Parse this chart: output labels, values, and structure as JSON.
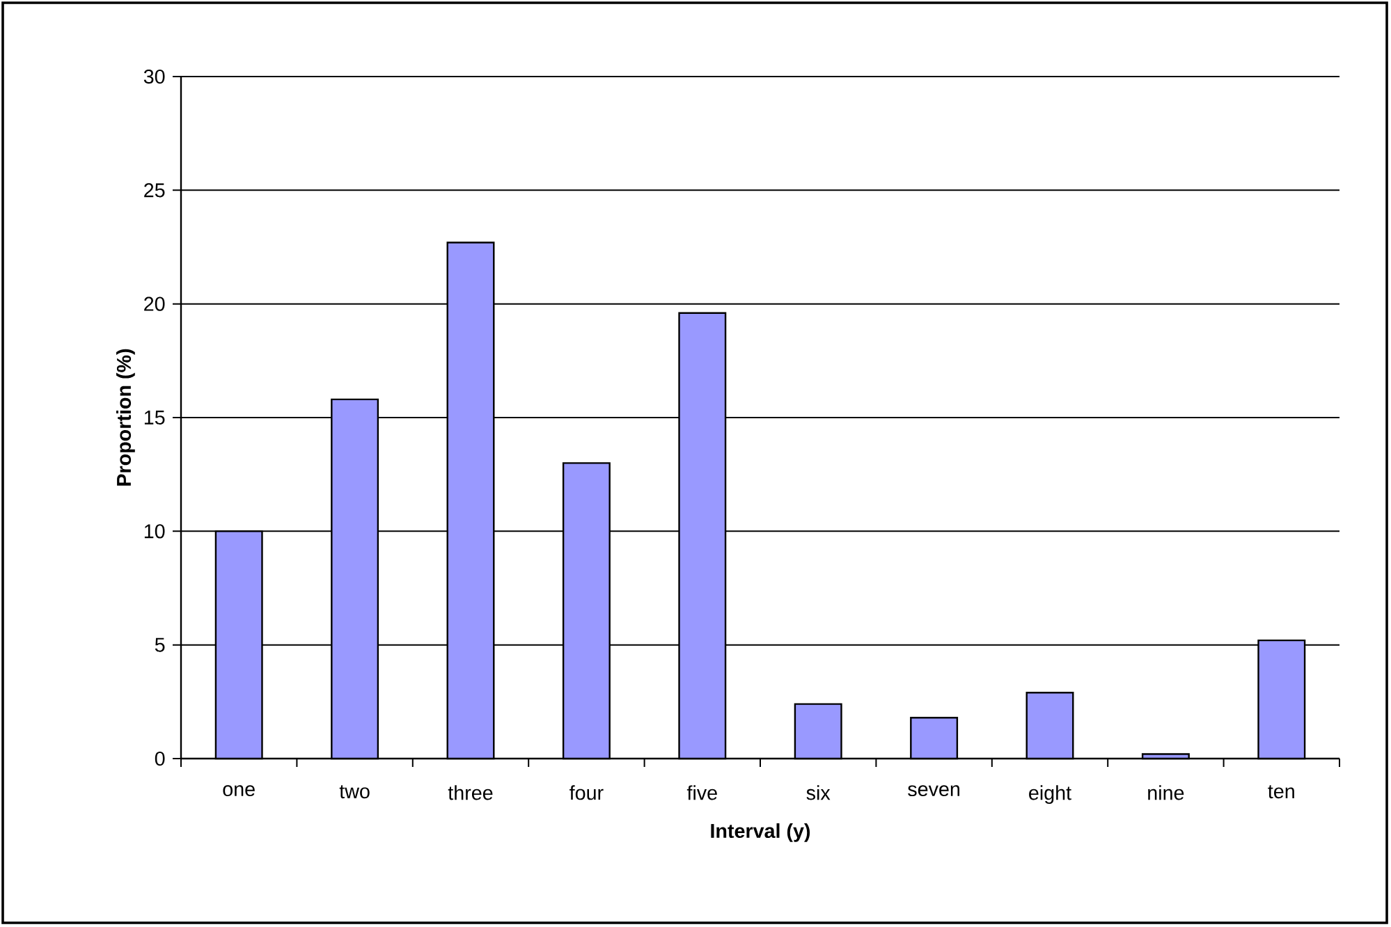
{
  "chart_data": {
    "type": "bar",
    "xlabel": "Interval (y)",
    "ylabel": "Proportion (%)",
    "categories": [
      "one",
      "two",
      "three",
      "four",
      "five",
      "six",
      "seven",
      "eight",
      "nine",
      "ten"
    ],
    "values": [
      10.0,
      15.8,
      22.7,
      13.0,
      19.6,
      2.4,
      1.8,
      2.9,
      0.2,
      5.2
    ],
    "color": "#9999ff",
    "ylim": [
      0,
      30
    ],
    "yticks": [
      0,
      5,
      10,
      15,
      20,
      25,
      30
    ],
    "grid": "y"
  }
}
